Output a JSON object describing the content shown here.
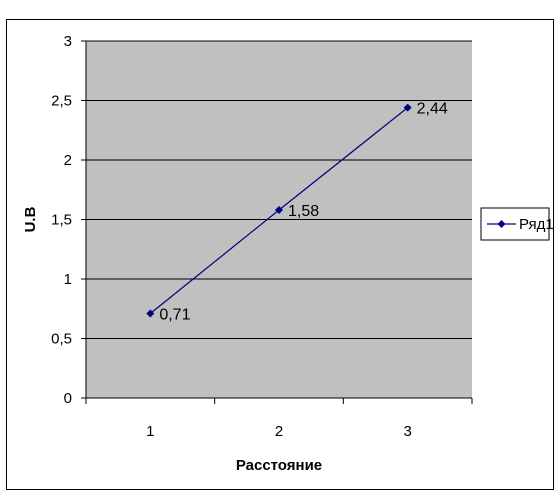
{
  "page": {
    "top_text": "                                                                             "
  },
  "chart_data": {
    "type": "line",
    "title": "",
    "xlabel": "Расстояние",
    "ylabel": "U.B",
    "categories": [
      "1",
      "2",
      "3"
    ],
    "series": [
      {
        "name": "Ряд1",
        "values": [
          0.71,
          1.58,
          2.44
        ],
        "labels": [
          "0,71",
          "1,58",
          "2,44"
        ],
        "color": "#000080"
      }
    ],
    "ylim": [
      0,
      3
    ],
    "yticks": [
      0,
      0.5,
      1,
      1.5,
      2,
      2.5,
      3
    ],
    "ytick_labels": [
      "0",
      "0,5",
      "1",
      "1,5",
      "2",
      "2,5",
      "3"
    ],
    "grid": true,
    "plot_background": "#c0c0c0",
    "gridline_color": "#000000",
    "legend_position": "right"
  }
}
